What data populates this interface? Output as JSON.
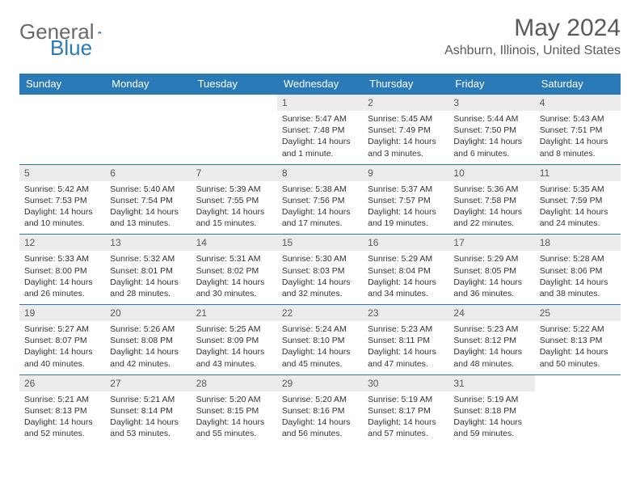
{
  "brand": {
    "name_a": "General",
    "name_b": "Blue"
  },
  "title": "May 2024",
  "location": "Ashburn, Illinois, United States",
  "colors": {
    "header_bg": "#2b7ab8",
    "header_text": "#ffffff",
    "daynum_bg": "#ececec",
    "daynum_text": "#5a5a5a",
    "body_text": "#333333",
    "rule": "#2b7ab8"
  },
  "weekdays": [
    "Sunday",
    "Monday",
    "Tuesday",
    "Wednesday",
    "Thursday",
    "Friday",
    "Saturday"
  ],
  "cells": [
    null,
    null,
    null,
    {
      "n": "1",
      "sr": "Sunrise: 5:47 AM",
      "ss": "Sunset: 7:48 PM",
      "dl": "Daylight: 14 hours and 1 minute."
    },
    {
      "n": "2",
      "sr": "Sunrise: 5:45 AM",
      "ss": "Sunset: 7:49 PM",
      "dl": "Daylight: 14 hours and 3 minutes."
    },
    {
      "n": "3",
      "sr": "Sunrise: 5:44 AM",
      "ss": "Sunset: 7:50 PM",
      "dl": "Daylight: 14 hours and 6 minutes."
    },
    {
      "n": "4",
      "sr": "Sunrise: 5:43 AM",
      "ss": "Sunset: 7:51 PM",
      "dl": "Daylight: 14 hours and 8 minutes."
    },
    {
      "n": "5",
      "sr": "Sunrise: 5:42 AM",
      "ss": "Sunset: 7:53 PM",
      "dl": "Daylight: 14 hours and 10 minutes."
    },
    {
      "n": "6",
      "sr": "Sunrise: 5:40 AM",
      "ss": "Sunset: 7:54 PM",
      "dl": "Daylight: 14 hours and 13 minutes."
    },
    {
      "n": "7",
      "sr": "Sunrise: 5:39 AM",
      "ss": "Sunset: 7:55 PM",
      "dl": "Daylight: 14 hours and 15 minutes."
    },
    {
      "n": "8",
      "sr": "Sunrise: 5:38 AM",
      "ss": "Sunset: 7:56 PM",
      "dl": "Daylight: 14 hours and 17 minutes."
    },
    {
      "n": "9",
      "sr": "Sunrise: 5:37 AM",
      "ss": "Sunset: 7:57 PM",
      "dl": "Daylight: 14 hours and 19 minutes."
    },
    {
      "n": "10",
      "sr": "Sunrise: 5:36 AM",
      "ss": "Sunset: 7:58 PM",
      "dl": "Daylight: 14 hours and 22 minutes."
    },
    {
      "n": "11",
      "sr": "Sunrise: 5:35 AM",
      "ss": "Sunset: 7:59 PM",
      "dl": "Daylight: 14 hours and 24 minutes."
    },
    {
      "n": "12",
      "sr": "Sunrise: 5:33 AM",
      "ss": "Sunset: 8:00 PM",
      "dl": "Daylight: 14 hours and 26 minutes."
    },
    {
      "n": "13",
      "sr": "Sunrise: 5:32 AM",
      "ss": "Sunset: 8:01 PM",
      "dl": "Daylight: 14 hours and 28 minutes."
    },
    {
      "n": "14",
      "sr": "Sunrise: 5:31 AM",
      "ss": "Sunset: 8:02 PM",
      "dl": "Daylight: 14 hours and 30 minutes."
    },
    {
      "n": "15",
      "sr": "Sunrise: 5:30 AM",
      "ss": "Sunset: 8:03 PM",
      "dl": "Daylight: 14 hours and 32 minutes."
    },
    {
      "n": "16",
      "sr": "Sunrise: 5:29 AM",
      "ss": "Sunset: 8:04 PM",
      "dl": "Daylight: 14 hours and 34 minutes."
    },
    {
      "n": "17",
      "sr": "Sunrise: 5:29 AM",
      "ss": "Sunset: 8:05 PM",
      "dl": "Daylight: 14 hours and 36 minutes."
    },
    {
      "n": "18",
      "sr": "Sunrise: 5:28 AM",
      "ss": "Sunset: 8:06 PM",
      "dl": "Daylight: 14 hours and 38 minutes."
    },
    {
      "n": "19",
      "sr": "Sunrise: 5:27 AM",
      "ss": "Sunset: 8:07 PM",
      "dl": "Daylight: 14 hours and 40 minutes."
    },
    {
      "n": "20",
      "sr": "Sunrise: 5:26 AM",
      "ss": "Sunset: 8:08 PM",
      "dl": "Daylight: 14 hours and 42 minutes."
    },
    {
      "n": "21",
      "sr": "Sunrise: 5:25 AM",
      "ss": "Sunset: 8:09 PM",
      "dl": "Daylight: 14 hours and 43 minutes."
    },
    {
      "n": "22",
      "sr": "Sunrise: 5:24 AM",
      "ss": "Sunset: 8:10 PM",
      "dl": "Daylight: 14 hours and 45 minutes."
    },
    {
      "n": "23",
      "sr": "Sunrise: 5:23 AM",
      "ss": "Sunset: 8:11 PM",
      "dl": "Daylight: 14 hours and 47 minutes."
    },
    {
      "n": "24",
      "sr": "Sunrise: 5:23 AM",
      "ss": "Sunset: 8:12 PM",
      "dl": "Daylight: 14 hours and 48 minutes."
    },
    {
      "n": "25",
      "sr": "Sunrise: 5:22 AM",
      "ss": "Sunset: 8:13 PM",
      "dl": "Daylight: 14 hours and 50 minutes."
    },
    {
      "n": "26",
      "sr": "Sunrise: 5:21 AM",
      "ss": "Sunset: 8:13 PM",
      "dl": "Daylight: 14 hours and 52 minutes."
    },
    {
      "n": "27",
      "sr": "Sunrise: 5:21 AM",
      "ss": "Sunset: 8:14 PM",
      "dl": "Daylight: 14 hours and 53 minutes."
    },
    {
      "n": "28",
      "sr": "Sunrise: 5:20 AM",
      "ss": "Sunset: 8:15 PM",
      "dl": "Daylight: 14 hours and 55 minutes."
    },
    {
      "n": "29",
      "sr": "Sunrise: 5:20 AM",
      "ss": "Sunset: 8:16 PM",
      "dl": "Daylight: 14 hours and 56 minutes."
    },
    {
      "n": "30",
      "sr": "Sunrise: 5:19 AM",
      "ss": "Sunset: 8:17 PM",
      "dl": "Daylight: 14 hours and 57 minutes."
    },
    {
      "n": "31",
      "sr": "Sunrise: 5:19 AM",
      "ss": "Sunset: 8:18 PM",
      "dl": "Daylight: 14 hours and 59 minutes."
    },
    null
  ]
}
